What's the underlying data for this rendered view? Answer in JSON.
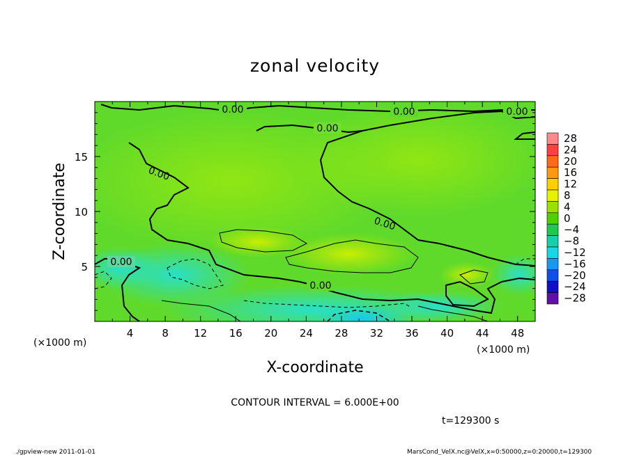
{
  "chart_data": {
    "type": "heatmap",
    "title": "zonal velocity",
    "xlabel": "X-coordinate",
    "ylabel": "Z-coordinate",
    "x_unit_label": "(×1000 m)",
    "y_unit_label": "(×1000 m)",
    "x_ticks": [
      4,
      8,
      12,
      16,
      20,
      24,
      28,
      32,
      36,
      40,
      44,
      48
    ],
    "y_ticks": [
      5,
      10,
      15
    ],
    "xlim": [
      0,
      50
    ],
    "ylim": [
      0,
      20
    ],
    "colorbar": {
      "levels": [
        28,
        24,
        20,
        16,
        12,
        8,
        4,
        0,
        -4,
        -8,
        -12,
        -16,
        -20,
        -24,
        -28
      ],
      "colors": [
        "#ff8a8a",
        "#ff4040",
        "#ff6a1a",
        "#ff9a10",
        "#ffd000",
        "#e6f200",
        "#9ae000",
        "#4cd200",
        "#20c850",
        "#18d0a8",
        "#18d8e8",
        "#1898f0",
        "#1050e8",
        "#1010c8",
        "#6010a8"
      ]
    },
    "contour_interval": "CONTOUR INTERVAL = 6.000E+00",
    "contour_labels": [
      "0.00",
      "0.00",
      "0.00",
      "0.00",
      "0.00",
      "0.00",
      "0.00",
      "0.00"
    ]
  },
  "annotations": {
    "contour_interval_text": "CONTOUR INTERVAL = 6.000E+00",
    "time_text": "t=129300 s",
    "footer_left": "./gpview-new  2011-01-01",
    "footer_right": "MarsCond_VelX.nc@VelX,x=0:50000,z=0:20000,t=129300"
  }
}
